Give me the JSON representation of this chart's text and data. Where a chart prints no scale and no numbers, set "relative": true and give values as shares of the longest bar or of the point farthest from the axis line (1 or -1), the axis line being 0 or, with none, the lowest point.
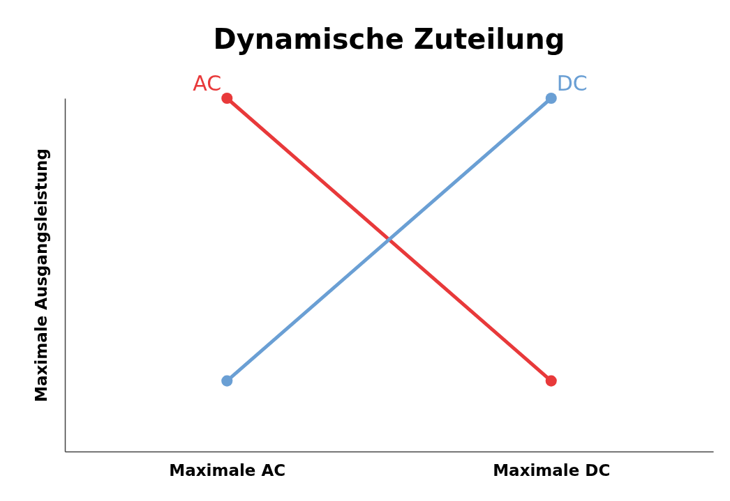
{
  "chart_data": {
    "type": "line",
    "title": "Dynamische Zuteilung",
    "ylabel": "Maximale Ausgangsleistung",
    "categories": [
      "Maximale AC",
      "Maximale DC"
    ],
    "relative": true,
    "marker": "circle",
    "line_style": "solid",
    "grid": false,
    "legend": false,
    "series": [
      {
        "name": "AC",
        "color": "#e8393a",
        "values": [
          1,
          0.2
        ]
      },
      {
        "name": "DC",
        "color": "#6a9fd4",
        "values": [
          0.2,
          1
        ]
      }
    ]
  }
}
